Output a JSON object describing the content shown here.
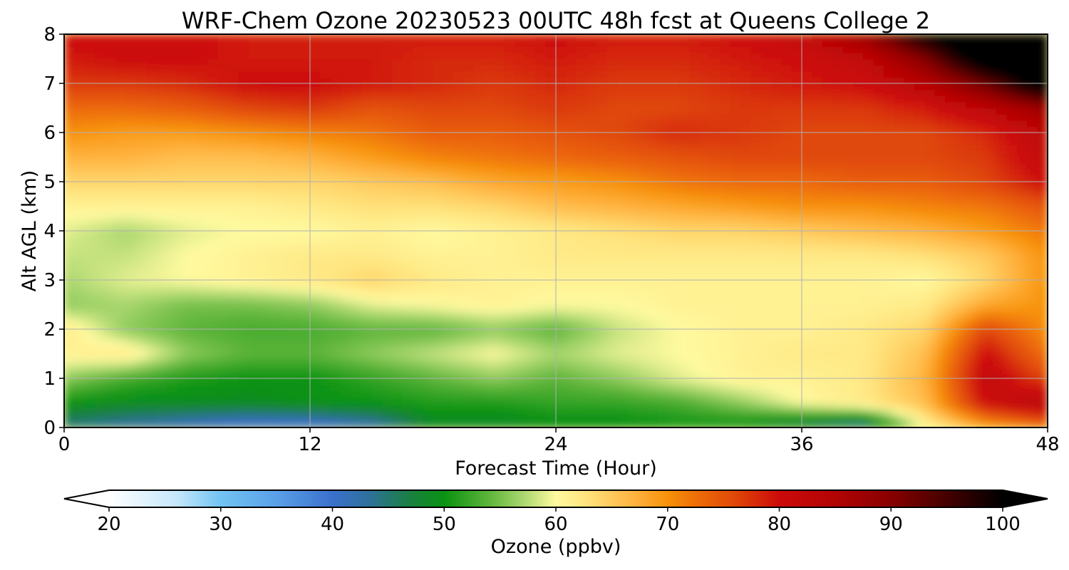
{
  "chart_data": {
    "type": "heatmap",
    "title": "WRF-Chem Ozone  20230523 00UTC 48h fcst at Queens College 2",
    "xlabel": "Forecast Time (Hour)",
    "ylabel": "Alt AGL (km)",
    "xlim": [
      0,
      48
    ],
    "ylim": [
      0,
      8
    ],
    "xticks": [
      0,
      12,
      24,
      36,
      48
    ],
    "yticks": [
      0,
      1,
      2,
      3,
      4,
      5,
      6,
      7,
      8
    ],
    "grid": true,
    "x": [
      0,
      3,
      6,
      9,
      12,
      15,
      18,
      21,
      24,
      27,
      30,
      33,
      36,
      39,
      42,
      45,
      48
    ],
    "y": [
      0,
      0.5,
      1,
      1.5,
      2,
      2.5,
      3,
      3.5,
      4,
      4.5,
      5,
      5.5,
      6,
      6.5,
      7,
      7.5,
      8
    ],
    "z": [
      [
        44,
        42,
        40,
        38,
        38,
        41,
        48,
        48,
        49,
        49,
        50,
        49,
        45,
        42,
        60,
        68,
        72
      ],
      [
        50,
        49,
        49,
        49,
        50,
        50,
        51,
        51,
        52,
        52,
        53,
        56,
        60,
        62,
        66,
        80,
        84
      ],
      [
        56,
        53,
        51,
        50,
        50,
        52,
        54,
        56,
        54,
        56,
        59,
        61,
        61,
        62,
        67,
        82,
        76
      ],
      [
        61,
        62,
        56,
        54,
        54,
        56,
        58,
        60,
        57,
        59,
        60,
        61,
        62,
        62,
        66,
        80,
        72
      ],
      [
        62,
        56,
        54,
        53,
        53,
        54,
        54,
        56,
        54,
        58,
        60,
        61,
        61,
        62,
        64,
        76,
        70
      ],
      [
        56,
        57,
        55,
        55,
        56,
        59,
        60,
        61,
        60,
        60,
        61,
        61,
        61,
        61,
        62,
        68,
        70
      ],
      [
        57,
        59,
        60,
        61,
        62,
        64,
        62,
        61,
        61,
        61,
        61,
        61,
        61,
        61,
        60,
        64,
        70
      ],
      [
        58,
        58,
        60,
        61,
        62,
        62,
        61,
        61,
        62,
        62,
        62,
        62,
        62,
        62,
        63,
        65,
        70
      ],
      [
        59,
        57,
        59,
        60,
        60,
        61,
        60,
        61,
        62,
        63,
        64,
        64,
        65,
        66,
        67,
        69,
        72
      ],
      [
        61,
        61,
        61,
        61,
        62,
        63,
        63,
        64,
        66,
        67,
        68,
        69,
        70,
        70,
        71,
        72,
        75
      ],
      [
        64,
        64,
        64,
        64,
        64,
        65,
        66,
        68,
        69,
        70,
        72,
        73,
        73,
        74,
        74,
        76,
        80
      ],
      [
        67,
        67,
        66,
        66,
        67,
        69,
        71,
        72,
        73,
        74,
        75,
        76,
        76,
        76,
        76,
        77,
        82
      ],
      [
        70,
        69,
        69,
        70,
        71,
        72,
        74,
        74,
        75,
        76,
        78,
        77,
        76,
        76,
        76,
        78,
        83
      ],
      [
        73,
        73,
        74,
        76,
        77,
        75,
        76,
        76,
        77,
        76,
        76,
        77,
        77,
        77,
        79,
        83,
        88
      ],
      [
        77,
        77,
        78,
        80,
        80,
        79,
        78,
        77,
        78,
        77,
        77,
        78,
        79,
        80,
        84,
        92,
        104
      ],
      [
        79,
        80,
        80,
        79,
        79,
        79,
        78,
        78,
        79,
        78,
        78,
        79,
        80,
        82,
        90,
        104,
        106
      ],
      [
        80,
        80,
        80,
        79,
        79,
        79,
        79,
        79,
        80,
        79,
        79,
        80,
        82,
        88,
        100,
        108,
        108
      ]
    ],
    "colorbar": {
      "label": "Ozone  (ppbv)",
      "min": 20,
      "max": 100,
      "ticks": [
        20,
        30,
        40,
        50,
        60,
        70,
        80,
        90,
        100
      ],
      "extend": "both",
      "stops": [
        [
          20,
          "#ffffff"
        ],
        [
          26,
          "#c6e8fb"
        ],
        [
          30,
          "#72c3f2"
        ],
        [
          35,
          "#5aa0e8"
        ],
        [
          40,
          "#3b70cc"
        ],
        [
          43,
          "#2f70a0"
        ],
        [
          47,
          "#1a8040"
        ],
        [
          50,
          "#0a9212"
        ],
        [
          54,
          "#5db43a"
        ],
        [
          57,
          "#a8d66e"
        ],
        [
          60,
          "#fffaa0"
        ],
        [
          63,
          "#ffe17a"
        ],
        [
          67,
          "#ffb340"
        ],
        [
          70,
          "#f7910a"
        ],
        [
          73,
          "#ec6808"
        ],
        [
          76,
          "#e04808"
        ],
        [
          80,
          "#cc0a0a"
        ],
        [
          85,
          "#b20404"
        ],
        [
          90,
          "#880000"
        ],
        [
          95,
          "#440000"
        ],
        [
          100,
          "#000000"
        ]
      ]
    }
  }
}
